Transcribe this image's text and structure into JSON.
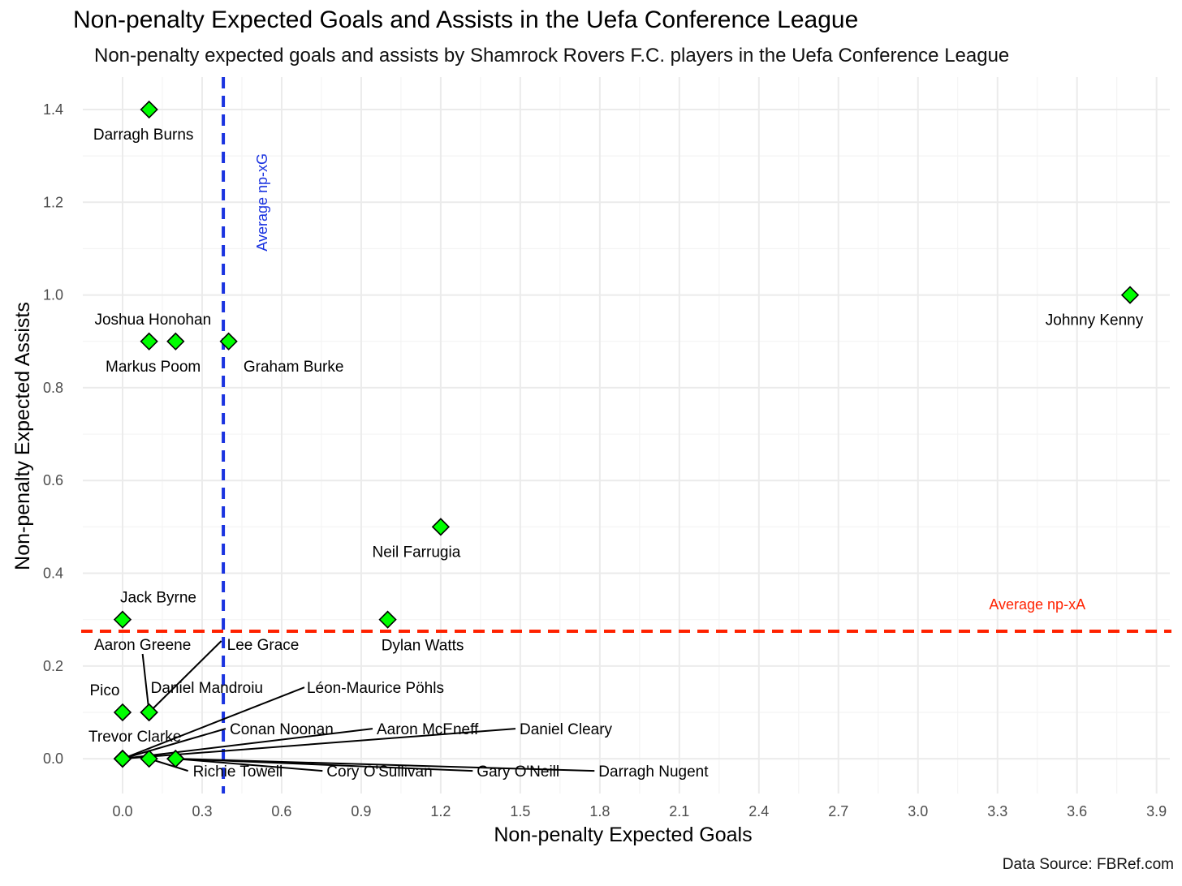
{
  "title": "Non-penalty Expected Goals and Assists in the Uefa Conference League",
  "subtitle": "Non-penalty expected goals and assists by Shamrock Rovers F.C. players in the Uefa Conference League",
  "caption": "Data Source: FBRef.com",
  "colors": {
    "point_fill": "#00ff00",
    "point_stroke": "#000000",
    "avg_xg_line": "#1a33e0",
    "avg_xa_line": "#ff2200",
    "grid_major": "#ebebeb",
    "grid_minor": "#f4f4f4"
  },
  "chart_data": {
    "type": "scatter",
    "xlabel": "Non-penalty Expected Goals",
    "ylabel": "Non-penalty Expected Assists",
    "xlim": [
      -0.15,
      3.95
    ],
    "ylim": [
      -0.075,
      1.47
    ],
    "x_ticks": [
      "0.0",
      "0.3",
      "0.6",
      "0.9",
      "1.2",
      "1.5",
      "1.8",
      "2.1",
      "2.4",
      "2.7",
      "3.0",
      "3.3",
      "3.6",
      "3.9"
    ],
    "y_ticks": [
      "0.0",
      "0.2",
      "0.4",
      "0.6",
      "0.8",
      "1.0",
      "1.2",
      "1.4"
    ],
    "grid": true,
    "reference_lines": [
      {
        "axis": "x",
        "value": 0.38,
        "label": "Average np-xG"
      },
      {
        "axis": "y",
        "value": 0.275,
        "label": "Average np-xA"
      }
    ],
    "points": [
      {
        "name": "Darragh Burns",
        "x": 0.1,
        "y": 1.4
      },
      {
        "name": "Johnny Kenny",
        "x": 3.8,
        "y": 1.0
      },
      {
        "name": "Joshua Honohan",
        "x": 0.2,
        "y": 0.9
      },
      {
        "name": "Markus Poom",
        "x": 0.1,
        "y": 0.9
      },
      {
        "name": "Graham Burke",
        "x": 0.4,
        "y": 0.9
      },
      {
        "name": "Neil Farrugia",
        "x": 1.2,
        "y": 0.5
      },
      {
        "name": "Jack Byrne",
        "x": 0.0,
        "y": 0.3
      },
      {
        "name": "Dylan Watts",
        "x": 1.0,
        "y": 0.3
      },
      {
        "name": "Aaron Greene",
        "x": 0.1,
        "y": 0.1
      },
      {
        "name": "Lee Grace",
        "x": 0.1,
        "y": 0.1
      },
      {
        "name": "Pico",
        "x": 0.0,
        "y": 0.1
      },
      {
        "name": "Daniel Mandroiu",
        "x": 0.1,
        "y": 0.1
      },
      {
        "name": "Léon-Maurice Pöhls",
        "x": 0.0,
        "y": 0.0
      },
      {
        "name": "Trevor Clarke",
        "x": 0.0,
        "y": 0.0
      },
      {
        "name": "Conan Noonan",
        "x": 0.0,
        "y": 0.0
      },
      {
        "name": "Aaron McEneff",
        "x": 0.0,
        "y": 0.0
      },
      {
        "name": "Daniel Cleary",
        "x": 0.0,
        "y": 0.0
      },
      {
        "name": "Richie Towell",
        "x": 0.1,
        "y": 0.0
      },
      {
        "name": "Cory O'Sullivan",
        "x": 0.2,
        "y": 0.0
      },
      {
        "name": "Gary O'Neill",
        "x": 0.2,
        "y": 0.0
      },
      {
        "name": "Darragh Nugent",
        "x": 0.2,
        "y": 0.0
      }
    ]
  }
}
